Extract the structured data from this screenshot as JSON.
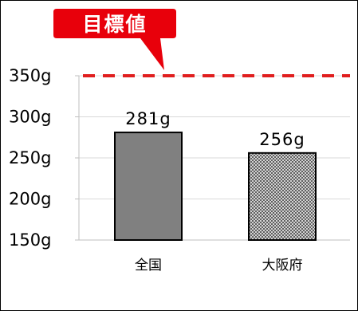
{
  "chart_data": {
    "type": "bar",
    "categories": [
      "全国",
      "大阪府"
    ],
    "values": [
      281,
      256
    ],
    "data_labels": [
      "281g",
      "256g"
    ],
    "yticks": [
      150,
      200,
      250,
      300,
      350
    ],
    "ytick_labels": [
      "150g",
      "200g",
      "250g",
      "300g",
      "350g"
    ],
    "ylim": [
      150,
      370
    ],
    "grid": true,
    "target": {
      "label": "目標値",
      "value": 350
    },
    "colors": {
      "bar_fill": [
        "#808080",
        "pattern"
      ],
      "bar_stroke": "#000000",
      "target_line": "#e01e1e",
      "callout_fill": "#e8000b",
      "grid": "#d9d9d9"
    }
  }
}
